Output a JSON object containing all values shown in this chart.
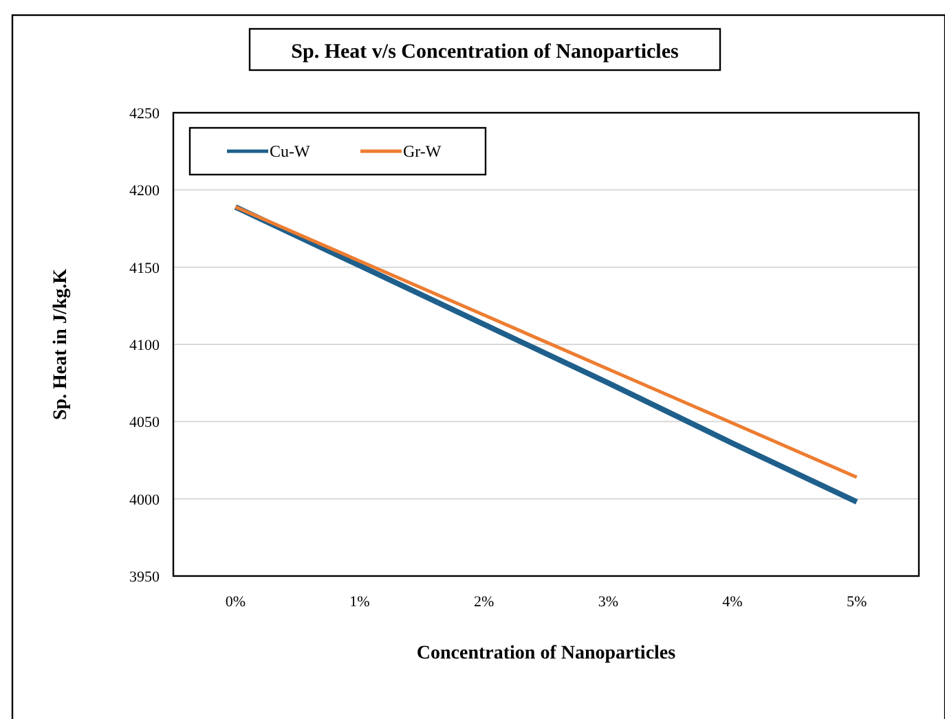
{
  "chart_data": {
    "type": "line",
    "title": "Sp. Heat v/s Concentration of Nanoparticles",
    "xlabel": "Concentration of Nanoparticles",
    "ylabel": "Sp. Heat in J/kg.K",
    "categories": [
      "0%",
      "1%",
      "2%",
      "3%",
      "4%",
      "5%"
    ],
    "series": [
      {
        "name": "Cu-W",
        "color": "#1f5f8b",
        "values": [
          4189,
          4151,
          4113,
          4075,
          4036,
          3998
        ]
      },
      {
        "name": "Gr-W",
        "color": "#ed7d31",
        "values": [
          4189,
          4154,
          4119,
          4084,
          4049,
          4014
        ]
      }
    ],
    "ylim": [
      3950,
      4250
    ],
    "yticks": [
      3950,
      4000,
      4050,
      4100,
      4150,
      4200,
      4250
    ],
    "grid": "y",
    "legend": "top left",
    "marker": "none",
    "line_style": "solid"
  }
}
